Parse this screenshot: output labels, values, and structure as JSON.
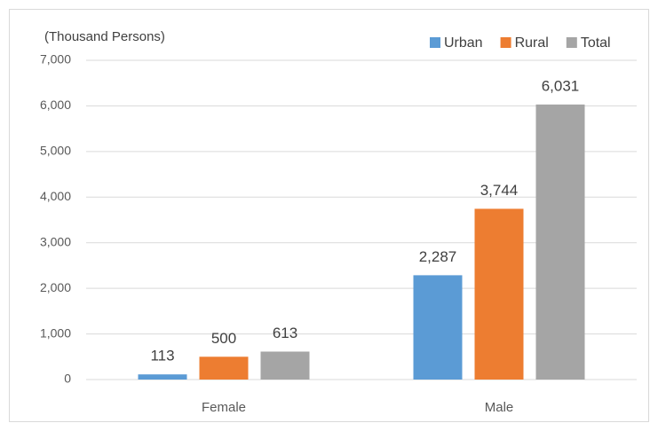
{
  "chart_data": {
    "type": "bar",
    "y_label": "(Thousand Persons)",
    "categories": [
      "Female",
      "Male"
    ],
    "series": [
      {
        "name": "Urban",
        "color": "#5b9bd5",
        "values": [
          113,
          2287
        ],
        "value_labels": [
          "113",
          "2,287"
        ]
      },
      {
        "name": "Rural",
        "color": "#ed7d31",
        "values": [
          500,
          3744
        ],
        "value_labels": [
          "500",
          "3,744"
        ]
      },
      {
        "name": "Total",
        "color": "#a5a5a5",
        "values": [
          613,
          6031
        ],
        "value_labels": [
          "613",
          "6,031"
        ]
      }
    ],
    "ylim": [
      0,
      7000
    ],
    "yticks": [
      0,
      {
        "value": 1000,
        "label": "1,000"
      },
      {
        "value": 2000,
        "label": "2,000"
      },
      {
        "value": 3000,
        "label": "3,000"
      },
      {
        "value": 4000,
        "label": "4,000"
      },
      {
        "value": 5000,
        "label": "5,000"
      },
      {
        "value": 6000,
        "label": "6,000"
      },
      {
        "value": 7000,
        "label": "7,000"
      }
    ],
    "grid": true,
    "legend": "top-right"
  }
}
